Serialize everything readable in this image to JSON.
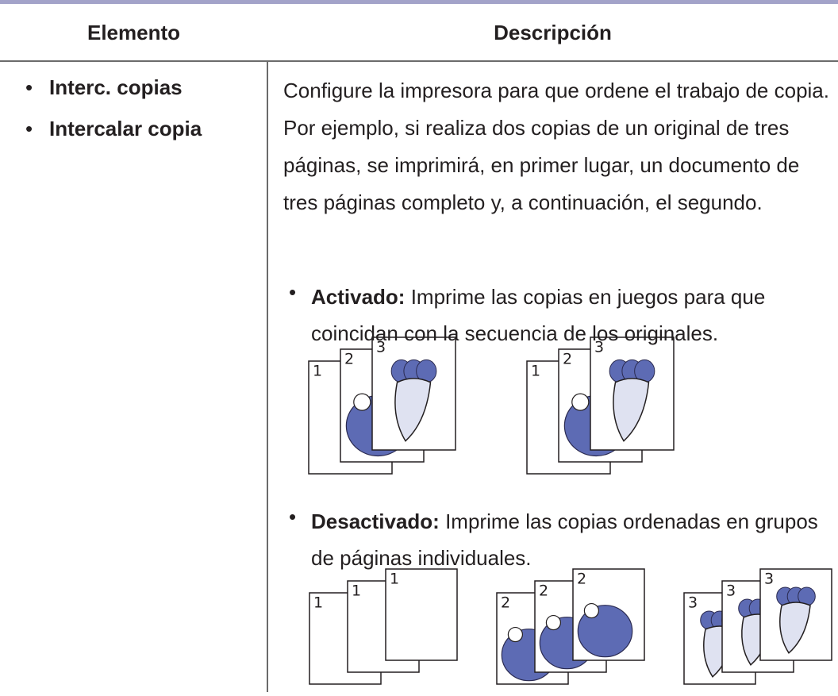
{
  "table": {
    "headers": [
      "Elemento",
      "Descripción"
    ],
    "rows": [
      {
        "items": [
          "Interc. copias",
          "Intercalar copia"
        ],
        "description": "Configure la impresora para que ordene el trabajo de copia. Por ejemplo, si realiza dos copias de un original de tres páginas, se imprimirá, en primer lugar, un documento de tres páginas completo y, a continuación, el segundo.",
        "options": [
          {
            "label": "Activado:",
            "text": "Imprime las copias en juegos para que coincidan con la secuencia de los originales.",
            "figure": [
              [
                "1",
                "2",
                "3"
              ],
              [
                "1",
                "2",
                "3"
              ]
            ]
          },
          {
            "label": "Desactivado:",
            "text": "Imprime las copias ordenadas en grupos de páginas individuales.",
            "figure": [
              [
                "1",
                "1",
                "1"
              ],
              [
                "2",
                "2",
                "2"
              ],
              [
                "3",
                "3",
                "3"
              ]
            ]
          }
        ]
      }
    ]
  }
}
